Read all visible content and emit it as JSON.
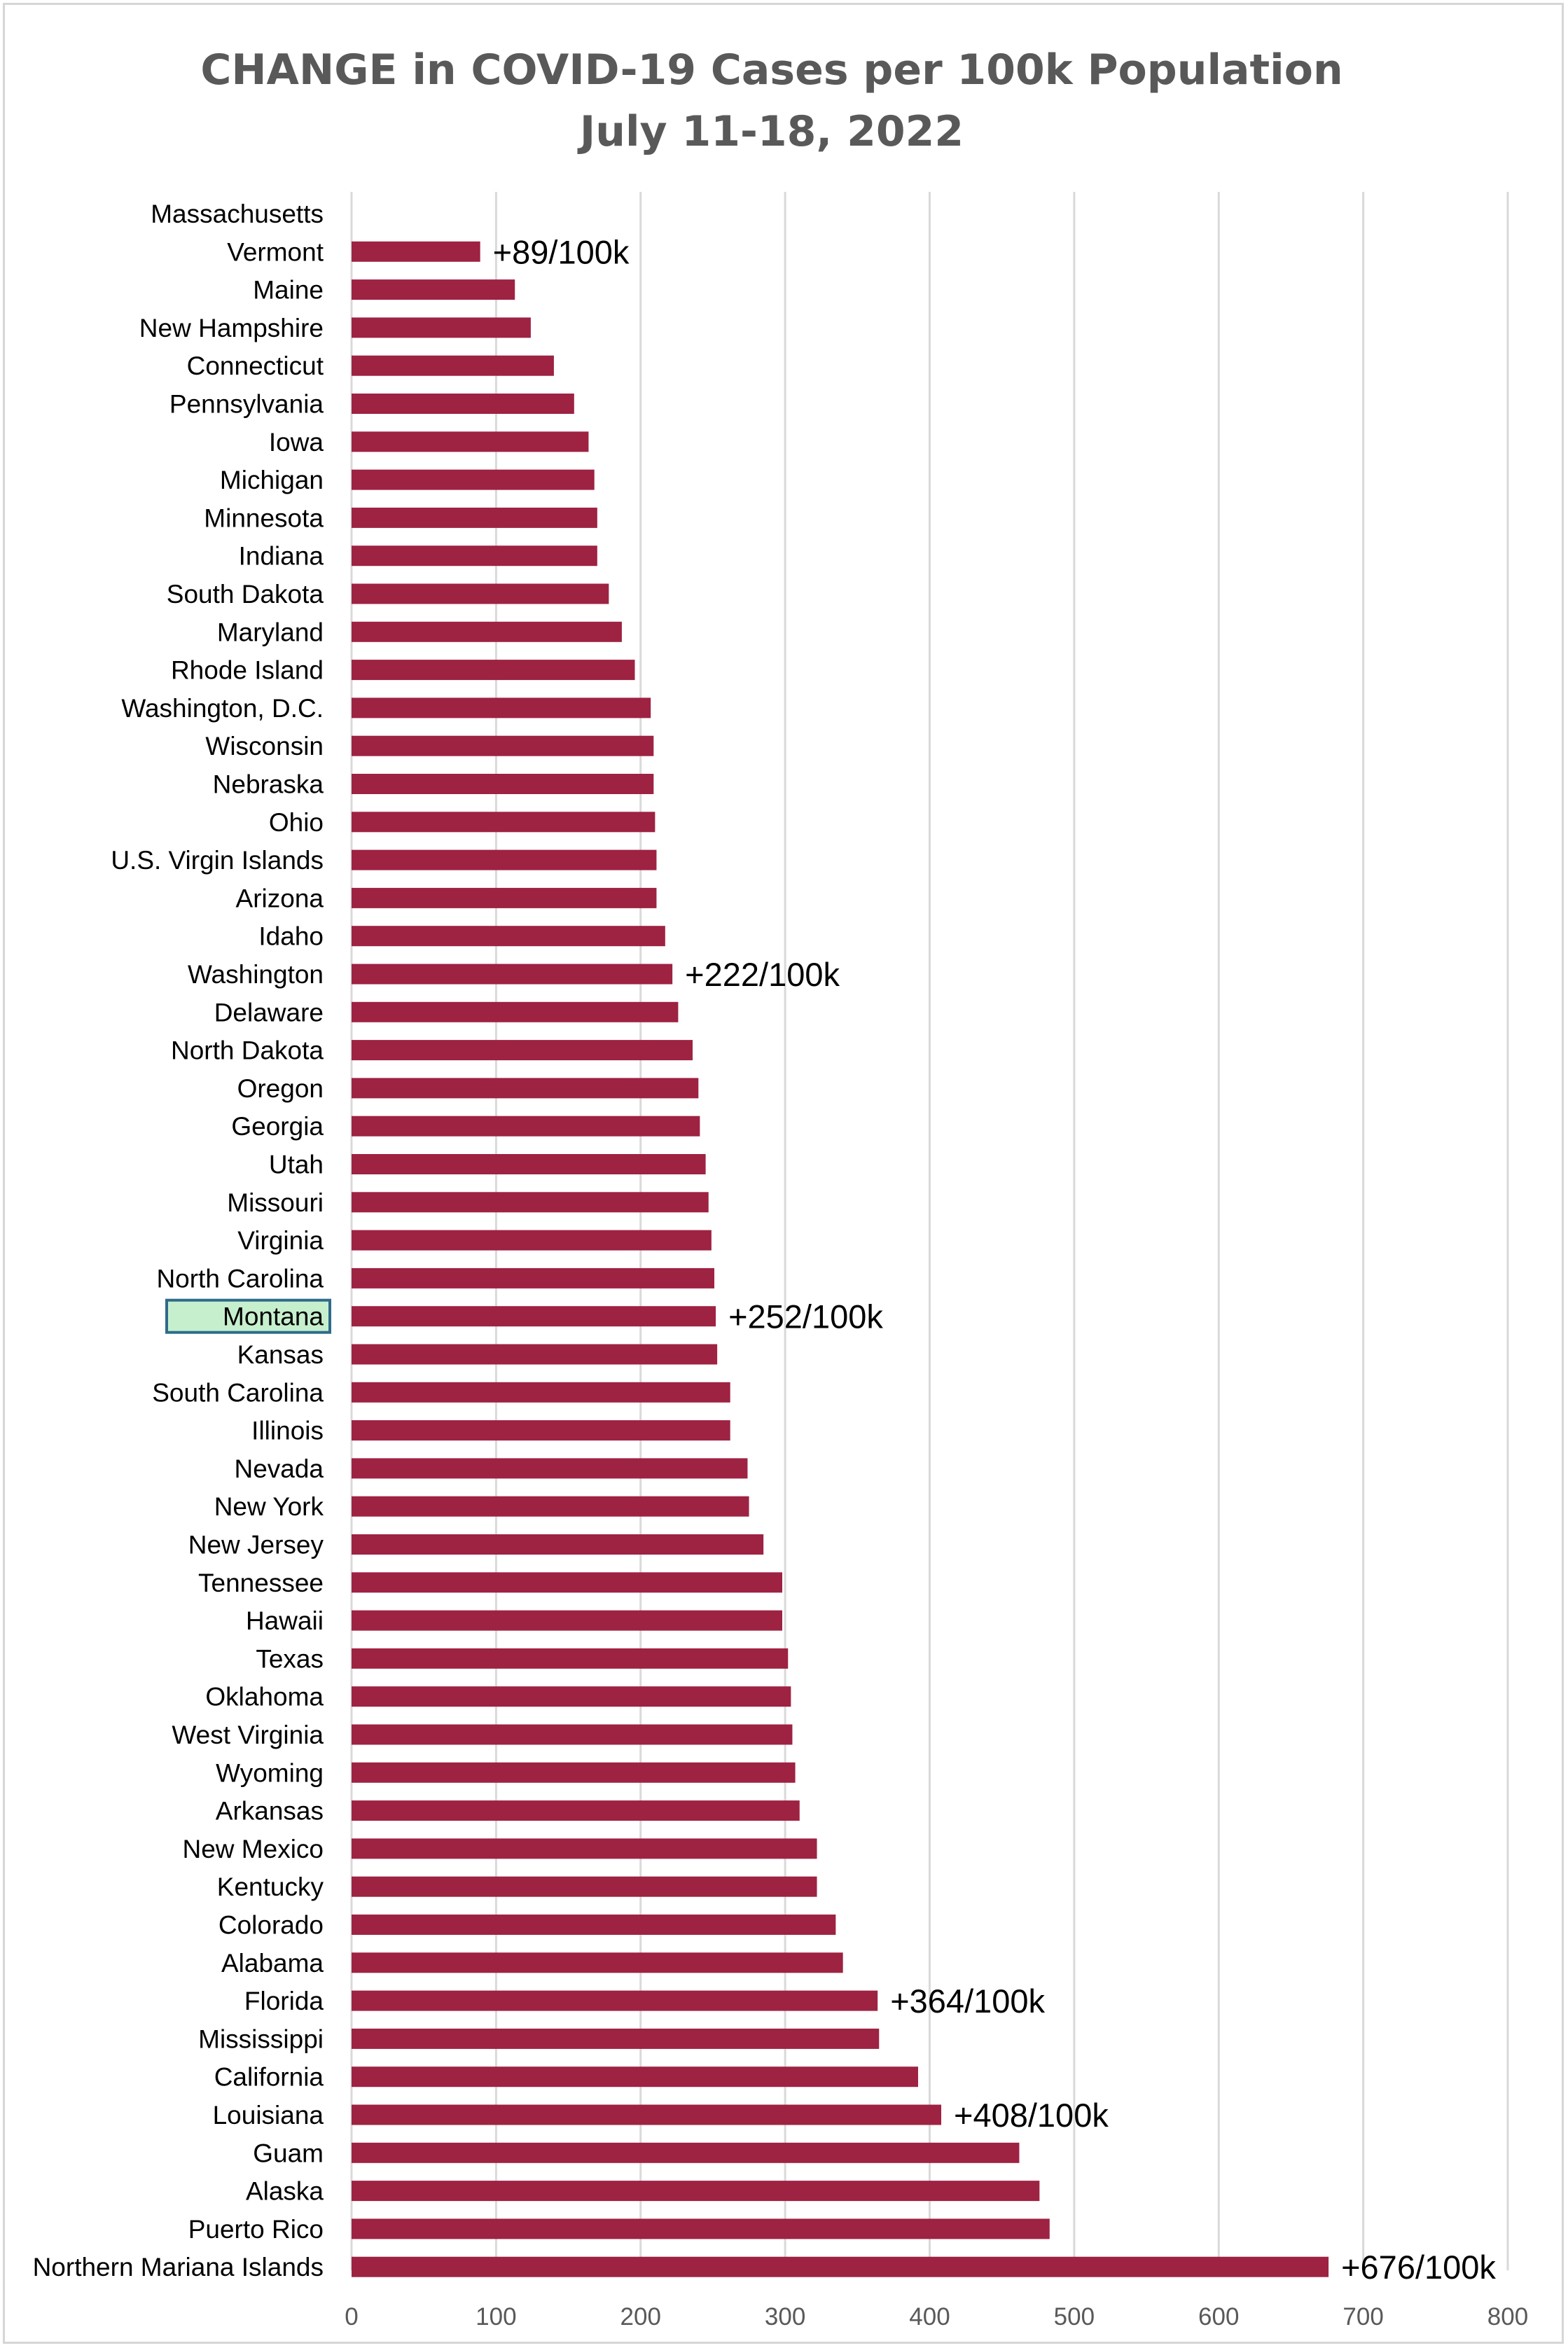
{
  "chart_data": {
    "type": "bar",
    "orientation": "horizontal",
    "title": "CHANGE in COVID-19 Cases per 100k Population",
    "subtitle": "July 11-18, 2022",
    "xlabel": "",
    "ylabel": "",
    "xlim": [
      0,
      800
    ],
    "x_ticks": [
      0,
      100,
      200,
      300,
      400,
      500,
      600,
      700,
      800
    ],
    "grid": true,
    "bar_color": "#9e2242",
    "highlight_color": "#c6efce",
    "highlight_border": "#2e6b8a",
    "highlight_category": "Montana",
    "categories": [
      "Massachusetts",
      "Vermont",
      "Maine",
      "New Hampshire",
      "Connecticut",
      "Pennsylvania",
      "Iowa",
      "Michigan",
      "Minnesota",
      "Indiana",
      "South Dakota",
      "Maryland",
      "Rhode Island",
      "Washington, D.C.",
      "Wisconsin",
      "Nebraska",
      "Ohio",
      "U.S. Virgin Islands",
      "Arizona",
      "Idaho",
      "Washington",
      "Delaware",
      "North Dakota",
      "Oregon",
      "Georgia",
      "Utah",
      "Missouri",
      "Virginia",
      "North Carolina",
      "Montana",
      "Kansas",
      "South Carolina",
      "Illinois",
      "Nevada",
      "New York",
      "New Jersey",
      "Tennessee",
      "Hawaii",
      "Texas",
      "Oklahoma",
      "West Virginia",
      "Wyoming",
      "Arkansas",
      "New Mexico",
      "Kentucky",
      "Colorado",
      "Alabama",
      "Florida",
      "Mississippi",
      "California",
      "Louisiana",
      "Guam",
      "Alaska",
      "Puerto Rico",
      "Northern Mariana Islands"
    ],
    "values": [
      0,
      89,
      113,
      124,
      140,
      154,
      164,
      168,
      170,
      170,
      178,
      187,
      196,
      207,
      209,
      209,
      210,
      211,
      211,
      217,
      222,
      226,
      236,
      240,
      241,
      245,
      247,
      249,
      251,
      252,
      253,
      262,
      262,
      274,
      275,
      285,
      298,
      298,
      302,
      304,
      305,
      307,
      310,
      322,
      322,
      335,
      340,
      364,
      365,
      392,
      408,
      462,
      476,
      483,
      676
    ],
    "data_labels": [
      {
        "category": "Vermont",
        "text": "+89/100k"
      },
      {
        "category": "Washington",
        "text": "+222/100k"
      },
      {
        "category": "Montana",
        "text": "+252/100k"
      },
      {
        "category": "Florida",
        "text": "+364/100k"
      },
      {
        "category": "Louisiana",
        "text": "+408/100k"
      },
      {
        "category": "Northern Mariana Islands",
        "text": "+676/100k"
      }
    ]
  }
}
